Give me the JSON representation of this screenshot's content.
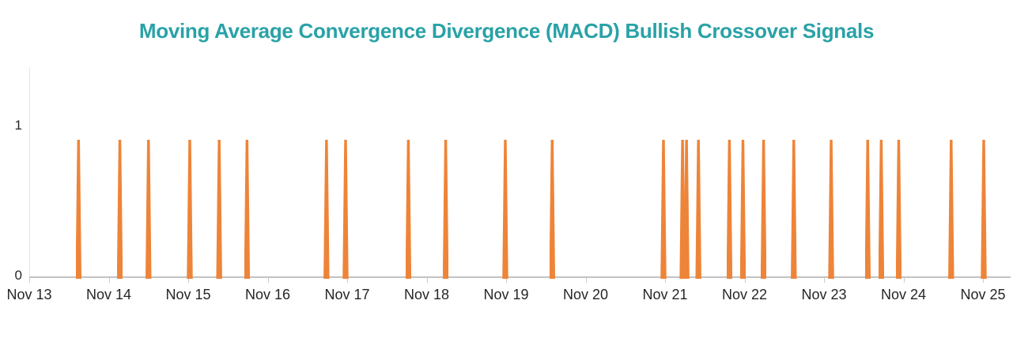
{
  "chart_data": {
    "type": "bar",
    "title": "Moving Average Convergence Divergence (MACD) Bullish Crossover Signals",
    "xlabel": "",
    "ylabel": "",
    "grid": false,
    "legend": "none",
    "ylim": [
      0,
      1.38
    ],
    "y_tick_labels": [
      "0",
      "1"
    ],
    "x_tick_labels": [
      "Nov 13",
      "Nov 14",
      "Nov 15",
      "Nov 16",
      "Nov 17",
      "Nov 18",
      "Nov 19",
      "Nov 20",
      "Nov 21",
      "Nov 22",
      "Nov 23",
      "Nov 24",
      "Nov 25"
    ],
    "colors": {
      "spike_orange": "#ee8438",
      "title_teal": "#29a2a7",
      "axis_gray": "#c2c2c2",
      "label_dark": "#262626"
    },
    "signals": [
      {
        "time": "Nov 13 15:00",
        "days_from_nov13": 0.62,
        "value": 0.9
      },
      {
        "time": "Nov 14 03:00",
        "days_from_nov13": 1.14,
        "value": 0.9
      },
      {
        "time": "Nov 14 12:00",
        "days_from_nov13": 1.5,
        "value": 0.9
      },
      {
        "time": "Nov 15 00:00",
        "days_from_nov13": 2.02,
        "value": 0.9
      },
      {
        "time": "Nov 15 09:00",
        "days_from_nov13": 2.39,
        "value": 0.9
      },
      {
        "time": "Nov 15 18:00",
        "days_from_nov13": 2.74,
        "value": 0.9
      },
      {
        "time": "Nov 16 18:00",
        "days_from_nov13": 3.74,
        "value": 0.9
      },
      {
        "time": "Nov 16 23:00",
        "days_from_nov13": 3.98,
        "value": 0.9
      },
      {
        "time": "Nov 17 18:00",
        "days_from_nov13": 4.77,
        "value": 0.9
      },
      {
        "time": "Nov 18 06:00",
        "days_from_nov13": 5.24,
        "value": 0.9
      },
      {
        "time": "Nov 19 00:00",
        "days_from_nov13": 5.99,
        "value": 0.9
      },
      {
        "time": "Nov 19 14:00",
        "days_from_nov13": 6.58,
        "value": 0.9
      },
      {
        "time": "Nov 20 23:00",
        "days_from_nov13": 7.98,
        "value": 0.9
      },
      {
        "time": "Nov 21 05:00",
        "days_from_nov13": 8.22,
        "value": 0.9
      },
      {
        "time": "Nov 21 06:00",
        "days_from_nov13": 8.27,
        "value": 0.9
      },
      {
        "time": "Nov 21 10:00",
        "days_from_nov13": 8.42,
        "value": 0.9
      },
      {
        "time": "Nov 21 19:00",
        "days_from_nov13": 8.81,
        "value": 0.9
      },
      {
        "time": "Nov 21 23:00",
        "days_from_nov13": 8.98,
        "value": 0.9
      },
      {
        "time": "Nov 22 06:00",
        "days_from_nov13": 9.24,
        "value": 0.9
      },
      {
        "time": "Nov 22 15:00",
        "days_from_nov13": 9.62,
        "value": 0.9
      },
      {
        "time": "Nov 23 02:00",
        "days_from_nov13": 10.09,
        "value": 0.9
      },
      {
        "time": "Nov 23 13:00",
        "days_from_nov13": 10.55,
        "value": 0.9
      },
      {
        "time": "Nov 23 17:00",
        "days_from_nov13": 10.72,
        "value": 0.9
      },
      {
        "time": "Nov 23 23:00",
        "days_from_nov13": 10.94,
        "value": 0.9
      },
      {
        "time": "Nov 24 14:00",
        "days_from_nov13": 11.6,
        "value": 0.9
      },
      {
        "time": "Nov 25 00:00",
        "days_from_nov13": 12.01,
        "value": 0.9
      }
    ]
  }
}
